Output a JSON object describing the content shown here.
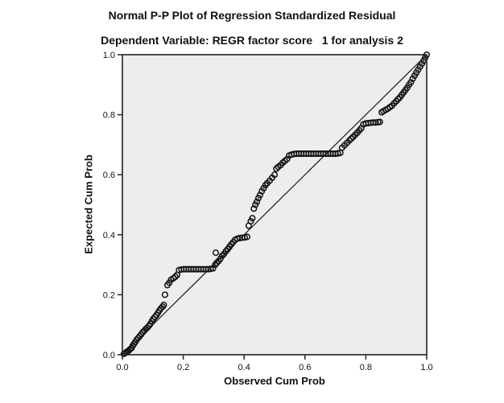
{
  "chart_data": {
    "type": "scatter",
    "title": "Normal P-P Plot of Regression Standardized Residual",
    "subtitle": "Dependent Variable: REGR factor score   1 for analysis 2",
    "xlabel": "Observed Cum Prob",
    "ylabel": "Expected Cum Prob",
    "xlim": [
      0.0,
      1.0
    ],
    "ylim": [
      0.0,
      1.0
    ],
    "x_ticks": [
      "0.0",
      "0.2",
      "0.4",
      "0.6",
      "0.8",
      "1.0"
    ],
    "y_ticks": [
      "0.0",
      "0.2",
      "0.4",
      "0.6",
      "0.8",
      "1.0"
    ],
    "grid": false,
    "legend": "none",
    "marker": "open-circle",
    "reference_line": {
      "from": [
        0.0,
        0.0
      ],
      "to": [
        1.0,
        1.0
      ]
    },
    "colors": {
      "page_bg": "#ffffff",
      "plot_bg": "#ededed",
      "frame": "#2e2e2e",
      "line": "#1a1a1a",
      "marker_stroke": "#121212"
    },
    "points": [
      [
        0.005,
        0.003
      ],
      [
        0.01,
        0.006
      ],
      [
        0.015,
        0.01
      ],
      [
        0.02,
        0.013
      ],
      [
        0.025,
        0.018
      ],
      [
        0.03,
        0.022
      ],
      [
        0.034,
        0.03
      ],
      [
        0.038,
        0.036
      ],
      [
        0.042,
        0.042
      ],
      [
        0.047,
        0.05
      ],
      [
        0.052,
        0.056
      ],
      [
        0.057,
        0.062
      ],
      [
        0.062,
        0.068
      ],
      [
        0.067,
        0.075
      ],
      [
        0.072,
        0.08
      ],
      [
        0.077,
        0.086
      ],
      [
        0.082,
        0.09
      ],
      [
        0.087,
        0.096
      ],
      [
        0.092,
        0.103
      ],
      [
        0.097,
        0.112
      ],
      [
        0.102,
        0.12
      ],
      [
        0.107,
        0.126
      ],
      [
        0.112,
        0.132
      ],
      [
        0.117,
        0.14
      ],
      [
        0.122,
        0.148
      ],
      [
        0.127,
        0.155
      ],
      [
        0.132,
        0.16
      ],
      [
        0.136,
        0.166
      ],
      [
        0.14,
        0.2
      ],
      [
        0.148,
        0.232
      ],
      [
        0.154,
        0.24
      ],
      [
        0.16,
        0.25
      ],
      [
        0.168,
        0.255
      ],
      [
        0.174,
        0.26
      ],
      [
        0.18,
        0.266
      ],
      [
        0.186,
        0.282
      ],
      [
        0.194,
        0.284
      ],
      [
        0.202,
        0.285
      ],
      [
        0.21,
        0.285
      ],
      [
        0.218,
        0.285
      ],
      [
        0.226,
        0.285
      ],
      [
        0.234,
        0.285
      ],
      [
        0.242,
        0.285
      ],
      [
        0.25,
        0.285
      ],
      [
        0.258,
        0.285
      ],
      [
        0.266,
        0.285
      ],
      [
        0.274,
        0.285
      ],
      [
        0.282,
        0.285
      ],
      [
        0.29,
        0.286
      ],
      [
        0.298,
        0.288
      ],
      [
        0.305,
        0.3
      ],
      [
        0.307,
        0.34
      ],
      [
        0.31,
        0.306
      ],
      [
        0.316,
        0.312
      ],
      [
        0.322,
        0.32
      ],
      [
        0.328,
        0.33
      ],
      [
        0.334,
        0.336
      ],
      [
        0.34,
        0.345
      ],
      [
        0.346,
        0.352
      ],
      [
        0.352,
        0.36
      ],
      [
        0.358,
        0.368
      ],
      [
        0.364,
        0.375
      ],
      [
        0.37,
        0.383
      ],
      [
        0.378,
        0.387
      ],
      [
        0.386,
        0.389
      ],
      [
        0.394,
        0.39
      ],
      [
        0.402,
        0.391
      ],
      [
        0.41,
        0.393
      ],
      [
        0.415,
        0.43
      ],
      [
        0.422,
        0.445
      ],
      [
        0.427,
        0.455
      ],
      [
        0.432,
        0.487
      ],
      [
        0.437,
        0.5
      ],
      [
        0.442,
        0.51
      ],
      [
        0.447,
        0.522
      ],
      [
        0.452,
        0.532
      ],
      [
        0.458,
        0.545
      ],
      [
        0.464,
        0.555
      ],
      [
        0.47,
        0.565
      ],
      [
        0.476,
        0.572
      ],
      [
        0.484,
        0.58
      ],
      [
        0.492,
        0.59
      ],
      [
        0.5,
        0.6
      ],
      [
        0.506,
        0.62
      ],
      [
        0.512,
        0.626
      ],
      [
        0.52,
        0.632
      ],
      [
        0.527,
        0.64
      ],
      [
        0.534,
        0.646
      ],
      [
        0.541,
        0.652
      ],
      [
        0.548,
        0.664
      ],
      [
        0.556,
        0.667
      ],
      [
        0.564,
        0.669
      ],
      [
        0.572,
        0.67
      ],
      [
        0.58,
        0.67
      ],
      [
        0.588,
        0.67
      ],
      [
        0.596,
        0.67
      ],
      [
        0.604,
        0.67
      ],
      [
        0.612,
        0.67
      ],
      [
        0.62,
        0.67
      ],
      [
        0.628,
        0.67
      ],
      [
        0.636,
        0.67
      ],
      [
        0.644,
        0.67
      ],
      [
        0.652,
        0.67
      ],
      [
        0.66,
        0.67
      ],
      [
        0.668,
        0.67
      ],
      [
        0.676,
        0.67
      ],
      [
        0.684,
        0.67
      ],
      [
        0.692,
        0.67
      ],
      [
        0.7,
        0.67
      ],
      [
        0.708,
        0.671
      ],
      [
        0.716,
        0.673
      ],
      [
        0.722,
        0.69
      ],
      [
        0.73,
        0.698
      ],
      [
        0.738,
        0.706
      ],
      [
        0.746,
        0.714
      ],
      [
        0.752,
        0.72
      ],
      [
        0.758,
        0.726
      ],
      [
        0.765,
        0.733
      ],
      [
        0.772,
        0.74
      ],
      [
        0.779,
        0.748
      ],
      [
        0.785,
        0.755
      ],
      [
        0.792,
        0.768
      ],
      [
        0.8,
        0.771
      ],
      [
        0.808,
        0.772
      ],
      [
        0.816,
        0.773
      ],
      [
        0.824,
        0.774
      ],
      [
        0.832,
        0.774
      ],
      [
        0.84,
        0.775
      ],
      [
        0.846,
        0.776
      ],
      [
        0.852,
        0.808
      ],
      [
        0.858,
        0.812
      ],
      [
        0.865,
        0.816
      ],
      [
        0.872,
        0.82
      ],
      [
        0.879,
        0.825
      ],
      [
        0.886,
        0.83
      ],
      [
        0.893,
        0.838
      ],
      [
        0.9,
        0.845
      ],
      [
        0.906,
        0.852
      ],
      [
        0.912,
        0.858
      ],
      [
        0.918,
        0.866
      ],
      [
        0.924,
        0.874
      ],
      [
        0.93,
        0.882
      ],
      [
        0.936,
        0.89
      ],
      [
        0.942,
        0.9
      ],
      [
        0.948,
        0.908
      ],
      [
        0.954,
        0.92
      ],
      [
        0.96,
        0.93
      ],
      [
        0.966,
        0.94
      ],
      [
        0.972,
        0.95
      ],
      [
        0.978,
        0.96
      ],
      [
        0.984,
        0.97
      ],
      [
        0.99,
        0.98
      ],
      [
        0.995,
        0.99
      ],
      [
        1.0,
        1.0
      ]
    ]
  }
}
